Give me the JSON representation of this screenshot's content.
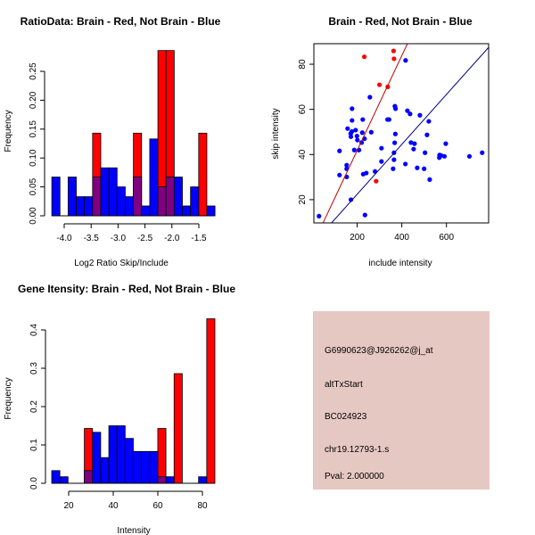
{
  "colors": {
    "red": "#ff0000",
    "blue": "#0000ff",
    "overlap": "#7f0080",
    "panel": "#e6c8c2",
    "pval": "#8b0000",
    "red_line": "#c00000",
    "blue_line": "#00008b"
  },
  "chart_data": [
    {
      "type": "bar",
      "title": "RatioData: Brain - Red, Not Brain - Blue",
      "xlabel": "Log2 Ratio Skip/Include",
      "ylabel": "Frequency",
      "bin_start": -4.23,
      "bin_width": 0.1515,
      "xticks": [
        "-4.0",
        "-3.5",
        "-3.0",
        "-2.5",
        "-2.0",
        "-1.5"
      ],
      "xtick_values": [
        -4.0,
        -3.5,
        -3.0,
        -2.5,
        -2.0,
        -1.5
      ],
      "yticks": [
        "0.00",
        "0.05",
        "0.10",
        "0.15",
        "0.20",
        "0.25"
      ],
      "ytick_values": [
        0,
        0.05,
        0.1,
        0.15,
        0.2,
        0.25
      ],
      "series": [
        {
          "name": "Not Brain",
          "color": "blue",
          "values": [
            0.067,
            0,
            0.067,
            0.033,
            0.033,
            0.067,
            0.083,
            0.083,
            0.05,
            0.033,
            0.067,
            0.017,
            0.133,
            0.05,
            0.067,
            0.067,
            0.017,
            0.05,
            0,
            0.017
          ]
        },
        {
          "name": "Brain",
          "color": "red",
          "values": [
            0,
            0,
            0,
            0,
            0,
            0.143,
            0,
            0,
            0,
            0,
            0.143,
            0,
            0,
            0.286,
            0.286,
            0,
            0,
            0,
            0.143,
            0
          ]
        }
      ]
    },
    {
      "type": "scatter",
      "title": "Brain - Red, Not Brain - Blue",
      "xlabel": "include intensity",
      "ylabel": "skip intensity",
      "xlim": [
        6,
        789
      ],
      "ylim": [
        9.7,
        89.1
      ],
      "xticks": [
        "200",
        "400",
        "600"
      ],
      "xtick_values": [
        200,
        400,
        600
      ],
      "yticks": [
        "20",
        "40",
        "60",
        "80"
      ],
      "ytick_values": [
        20,
        40,
        60,
        80
      ],
      "series": [
        {
          "name": "Brain",
          "color": "red",
          "points": [
            [
              232,
              83.3
            ],
            [
              363,
              85.9
            ],
            [
              365,
              82.4
            ],
            [
              300,
              70.9
            ],
            [
              337,
              70.0
            ],
            [
              285,
              28.2
            ]
          ],
          "fit": {
            "intercept": -0.2,
            "slope": 0.21
          }
        },
        {
          "name": "Not Brain",
          "color": "blue",
          "points": [
            [
              417,
              81.7
            ],
            [
              257,
              65.4
            ],
            [
              177,
              60.3
            ],
            [
              369,
              61.4
            ],
            [
              372,
              60.3
            ],
            [
              425,
              59.4
            ],
            [
              437,
              58.0
            ],
            [
              481,
              57.4
            ],
            [
              521,
              54.7
            ],
            [
              177,
              55.1
            ],
            [
              225,
              55.5
            ],
            [
              336,
              55.5
            ],
            [
              343,
              55.5
            ],
            [
              157,
              51.5
            ],
            [
              193,
              50.8
            ],
            [
              176,
              50.2
            ],
            [
              171,
              49.3
            ],
            [
              223,
              49.7
            ],
            [
              263,
              49.9
            ],
            [
              172,
              47.9
            ],
            [
              199,
              48.2
            ],
            [
              233,
              47.0
            ],
            [
              201,
              46.4
            ],
            [
              220,
              45.3
            ],
            [
              371,
              49.1
            ],
            [
              513,
              48.7
            ],
            [
              368,
              45.2
            ],
            [
              441,
              45.3
            ],
            [
              457,
              44.8
            ],
            [
              453,
              42.4
            ],
            [
              597,
              44.8
            ],
            [
              121,
              41.6
            ],
            [
              187,
              42.0
            ],
            [
              208,
              42.0
            ],
            [
              309,
              42.8
            ],
            [
              365,
              40.8
            ],
            [
              504,
              40.8
            ],
            [
              569,
              39.8
            ],
            [
              576,
              39.6
            ],
            [
              591,
              39.2
            ],
            [
              568,
              38.6
            ],
            [
              703,
              39.2
            ],
            [
              760,
              40.8
            ],
            [
              153,
              35.3
            ],
            [
              309,
              36.9
            ],
            [
              365,
              37.7
            ],
            [
              416,
              35.8
            ],
            [
              469,
              34.1
            ],
            [
              500,
              33.7
            ],
            [
              361,
              33.7
            ],
            [
              153,
              33.7
            ],
            [
              121,
              30.9
            ],
            [
              153,
              30.1
            ],
            [
              227,
              31.3
            ],
            [
              241,
              31.8
            ],
            [
              280,
              32.5
            ],
            [
              525,
              28.9
            ],
            [
              172,
              20.0
            ],
            [
              29,
              12.7
            ],
            [
              235,
              13.2
            ]
          ],
          "fit": {
            "intercept": 0.3,
            "slope": 0.1105
          }
        }
      ]
    },
    {
      "type": "bar",
      "title": "Gene Itensity: Brain - Red, Not Brain - Blue",
      "xlabel": "Intensity",
      "ylabel": "Frequency",
      "bin_start": 12.4,
      "bin_width": 3.66,
      "xticks": [
        "20",
        "40",
        "60",
        "80"
      ],
      "xtick_values": [
        20,
        40,
        60,
        80
      ],
      "yticks": [
        "0.0",
        "0.1",
        "0.2",
        "0.3",
        "0.4"
      ],
      "ytick_values": [
        0,
        0.1,
        0.2,
        0.3,
        0.4
      ],
      "series": [
        {
          "name": "Not Brain",
          "color": "blue",
          "values": [
            0.033,
            0.017,
            0,
            0,
            0.033,
            0.133,
            0.067,
            0.15,
            0.15,
            0.117,
            0.083,
            0.083,
            0.083,
            0.017,
            0.017,
            0,
            0,
            0,
            0.017,
            0
          ]
        },
        {
          "name": "Brain",
          "color": "red",
          "values": [
            0,
            0,
            0,
            0,
            0.143,
            0,
            0,
            0,
            0,
            0,
            0,
            0,
            0,
            0.143,
            0,
            0.286,
            0,
            0,
            0,
            0.429
          ]
        }
      ]
    }
  ],
  "info_panel": {
    "probe_id": "G6990623@J926262@j_at",
    "event_type": "altTxStart",
    "accession": "BC024923",
    "locus": "chr19.12793-1.s",
    "pval": "Pval: 2.000000"
  }
}
